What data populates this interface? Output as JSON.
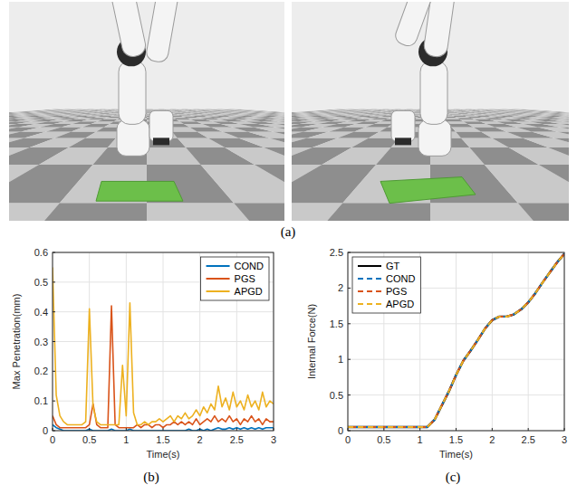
{
  "panel_labels": [
    "(a)",
    "(b)",
    "(c)"
  ],
  "chart_data": [
    {
      "type": "line",
      "x_label": "Time(s)",
      "y_label": "Max Penetration(mm)",
      "xlim": [
        0,
        3
      ],
      "xticks": [
        0,
        0.5,
        1,
        1.5,
        2,
        2.5,
        3
      ],
      "ylim": [
        0,
        0.6
      ],
      "yticks": [
        0,
        0.1,
        0.2,
        0.3,
        0.4,
        0.5,
        0.6
      ],
      "grid": true,
      "legend": "upper right",
      "x": [
        0,
        0.05,
        0.1,
        0.15,
        0.2,
        0.25,
        0.3,
        0.35,
        0.4,
        0.45,
        0.5,
        0.55,
        0.6,
        0.65,
        0.7,
        0.75,
        0.8,
        0.85,
        0.9,
        0.95,
        1,
        1.05,
        1.1,
        1.15,
        1.2,
        1.25,
        1.3,
        1.35,
        1.4,
        1.45,
        1.5,
        1.55,
        1.6,
        1.65,
        1.7,
        1.75,
        1.8,
        1.85,
        1.9,
        1.95,
        2,
        2.05,
        2.1,
        2.15,
        2.2,
        2.25,
        2.3,
        2.35,
        2.4,
        2.45,
        2.5,
        2.55,
        2.6,
        2.65,
        2.7,
        2.75,
        2.8,
        2.85,
        2.9,
        2.95,
        3
      ],
      "series": [
        {
          "name": "COND",
          "color": "#0072bd",
          "line_style": "solid",
          "values": [
            0.02,
            0.01,
            0.005,
            0,
            0,
            0,
            0,
            0,
            0,
            0,
            0.005,
            0,
            0,
            0,
            0,
            0,
            0.005,
            0,
            0,
            0,
            0,
            0.005,
            0,
            0,
            0,
            0,
            0,
            0,
            0,
            0,
            0,
            0,
            0,
            0,
            0,
            0,
            0,
            0.005,
            0,
            0,
            0.005,
            0,
            0.005,
            0,
            0.005,
            0.01,
            0.005,
            0.005,
            0.01,
            0.005,
            0.01,
            0.005,
            0.01,
            0.005,
            0.01,
            0.005,
            0.01,
            0.005,
            0.01,
            0.01,
            0.01
          ]
        },
        {
          "name": "PGS",
          "color": "#d95319",
          "line_style": "solid",
          "values": [
            0.05,
            0.02,
            0.01,
            0.01,
            0.01,
            0.01,
            0.01,
            0.01,
            0.01,
            0.01,
            0.02,
            0.09,
            0.02,
            0.01,
            0.01,
            0.01,
            0.42,
            0.02,
            0.01,
            0.01,
            0.01,
            0.01,
            0.01,
            0.02,
            0.01,
            0.02,
            0.02,
            0.01,
            0.02,
            0.02,
            0.01,
            0.02,
            0.02,
            0.03,
            0.02,
            0.03,
            0.02,
            0.03,
            0.02,
            0.04,
            0.02,
            0.03,
            0.04,
            0.03,
            0.05,
            0.03,
            0.04,
            0.03,
            0.05,
            0.03,
            0.04,
            0.02,
            0.04,
            0.03,
            0.05,
            0.03,
            0.04,
            0.02,
            0.04,
            0.03,
            0.03
          ]
        },
        {
          "name": "APGD",
          "color": "#edb120",
          "line_style": "solid",
          "values": [
            0.55,
            0.12,
            0.05,
            0.03,
            0.02,
            0.02,
            0.02,
            0.02,
            0.02,
            0.03,
            0.41,
            0.08,
            0.03,
            0.02,
            0.02,
            0.02,
            0.02,
            0.02,
            0.02,
            0.22,
            0.05,
            0.43,
            0.06,
            0.02,
            0.02,
            0.03,
            0.02,
            0.03,
            0.03,
            0.04,
            0.03,
            0.04,
            0.05,
            0.03,
            0.05,
            0.04,
            0.06,
            0.04,
            0.05,
            0.07,
            0.05,
            0.08,
            0.06,
            0.09,
            0.07,
            0.15,
            0.08,
            0.11,
            0.07,
            0.13,
            0.08,
            0.1,
            0.07,
            0.12,
            0.08,
            0.1,
            0.07,
            0.13,
            0.08,
            0.1,
            0.09
          ]
        }
      ]
    },
    {
      "type": "line",
      "x_label": "Time(s)",
      "y_label": "Internal Force(N)",
      "xlim": [
        0,
        3
      ],
      "xticks": [
        0,
        0.5,
        1,
        1.5,
        2,
        2.5,
        3
      ],
      "ylim": [
        0,
        2.5
      ],
      "yticks": [
        0,
        0.5,
        1,
        1.5,
        2,
        2.5
      ],
      "grid": true,
      "legend": "upper left",
      "x": [
        0,
        0.1,
        0.2,
        0.3,
        0.4,
        0.5,
        0.6,
        0.7,
        0.8,
        0.9,
        1,
        1.1,
        1.2,
        1.3,
        1.4,
        1.5,
        1.6,
        1.7,
        1.8,
        1.9,
        2,
        2.1,
        2.2,
        2.3,
        2.4,
        2.5,
        2.6,
        2.7,
        2.8,
        2.9,
        3
      ],
      "series": [
        {
          "name": "GT",
          "color": "#000000",
          "line_style": "solid",
          "values": [
            0.05,
            0.05,
            0.05,
            0.05,
            0.05,
            0.05,
            0.05,
            0.05,
            0.05,
            0.05,
            0.05,
            0.05,
            0.15,
            0.35,
            0.55,
            0.78,
            0.98,
            1.12,
            1.27,
            1.43,
            1.55,
            1.6,
            1.6,
            1.63,
            1.7,
            1.8,
            1.93,
            2.08,
            2.22,
            2.36,
            2.48
          ]
        },
        {
          "name": "COND",
          "color": "#0072bd",
          "line_style": "dashed",
          "values": [
            0.05,
            0.05,
            0.05,
            0.05,
            0.05,
            0.05,
            0.05,
            0.05,
            0.05,
            0.05,
            0.05,
            0.05,
            0.15,
            0.35,
            0.55,
            0.78,
            0.98,
            1.12,
            1.27,
            1.43,
            1.55,
            1.6,
            1.6,
            1.63,
            1.7,
            1.8,
            1.93,
            2.08,
            2.22,
            2.36,
            2.48
          ]
        },
        {
          "name": "PGS",
          "color": "#d95319",
          "line_style": "dashed",
          "values": [
            0.05,
            0.05,
            0.05,
            0.05,
            0.05,
            0.05,
            0.05,
            0.05,
            0.05,
            0.05,
            0.05,
            0.05,
            0.15,
            0.35,
            0.55,
            0.78,
            0.98,
            1.12,
            1.27,
            1.43,
            1.55,
            1.6,
            1.6,
            1.63,
            1.7,
            1.8,
            1.93,
            2.08,
            2.22,
            2.36,
            2.48
          ]
        },
        {
          "name": "APGD",
          "color": "#edb120",
          "line_style": "dashed",
          "values": [
            0.05,
            0.05,
            0.05,
            0.05,
            0.05,
            0.05,
            0.05,
            0.05,
            0.05,
            0.05,
            0.05,
            0.05,
            0.15,
            0.35,
            0.55,
            0.78,
            0.98,
            1.12,
            1.27,
            1.43,
            1.55,
            1.6,
            1.6,
            1.63,
            1.7,
            1.8,
            1.93,
            2.08,
            2.22,
            2.36,
            2.48
          ]
        }
      ]
    }
  ]
}
